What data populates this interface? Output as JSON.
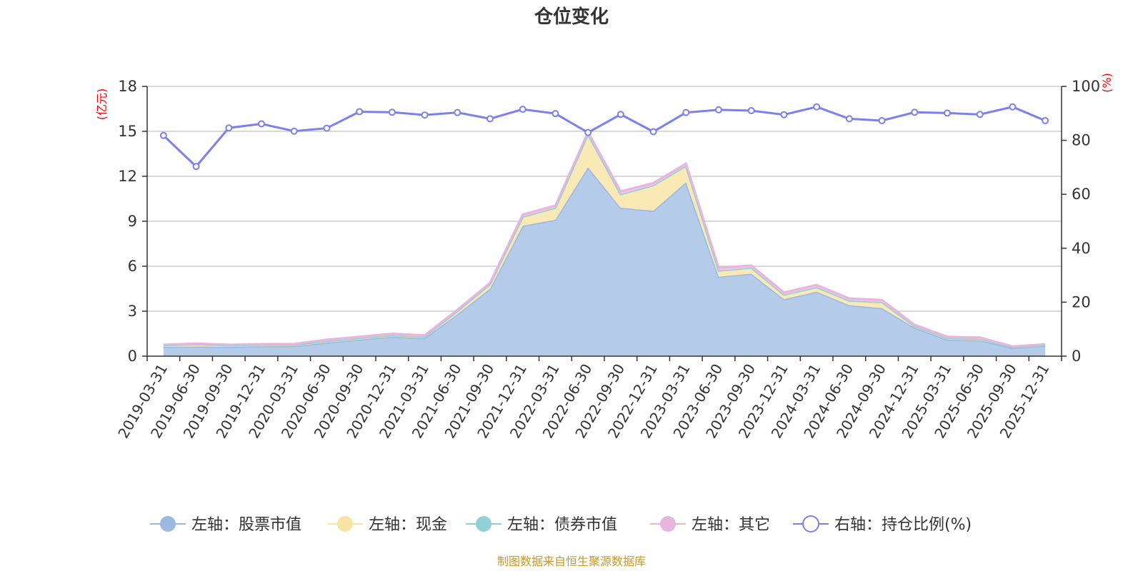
{
  "chart_data": {
    "type": "area",
    "title": "仓位变化",
    "left_axis_unit": "(亿元)",
    "right_axis_unit": "(%)",
    "left_ylim": [
      0,
      18
    ],
    "left_ticks": [
      0,
      3,
      6,
      9,
      12,
      15,
      18
    ],
    "right_ylim": [
      0,
      100
    ],
    "right_ticks": [
      0,
      20,
      40,
      60,
      80,
      100
    ],
    "categories": [
      "2019-03-31",
      "2019-06-30",
      "2019-09-30",
      "2019-12-31",
      "2020-03-31",
      "2020-06-30",
      "2020-09-30",
      "2020-12-31",
      "2021-03-31",
      "2021-06-30",
      "2021-09-30",
      "2021-12-31",
      "2022-03-31",
      "2022-06-30",
      "2022-09-30",
      "2022-12-31",
      "2023-03-31",
      "2023-06-30",
      "2023-09-30",
      "2023-12-31",
      "2024-03-31",
      "2024-06-30",
      "2024-09-30",
      "2024-12-31",
      "2025-03-31",
      "2025-06-30",
      "2025-09-30",
      "2025-12-31"
    ],
    "series": [
      {
        "name": "左轴：股票市值",
        "axis": "left",
        "color": "#9bb8e3",
        "fill": "#b5cbea",
        "values": [
          0.62,
          0.64,
          0.62,
          0.66,
          0.67,
          0.9,
          1.1,
          1.3,
          1.2,
          2.8,
          4.5,
          8.7,
          9.1,
          12.6,
          9.9,
          9.7,
          11.6,
          5.3,
          5.5,
          3.8,
          4.3,
          3.4,
          3.2,
          1.9,
          1.1,
          1.05,
          0.55,
          0.7
        ]
      },
      {
        "name": "左轴：现金",
        "axis": "left",
        "color": "#f7e4a3",
        "fill": "#fbe9b5",
        "values": [
          0.1,
          0.16,
          0.1,
          0.1,
          0.1,
          0.1,
          0.1,
          0.1,
          0.1,
          0.2,
          0.3,
          0.6,
          0.8,
          2.2,
          0.9,
          1.7,
          1.1,
          0.4,
          0.4,
          0.3,
          0.3,
          0.3,
          0.4,
          0.1,
          0.1,
          0.1,
          0.05,
          0.05
        ]
      },
      {
        "name": "左轴：债券市值",
        "axis": "left",
        "color": "#8fd1d5",
        "fill": "#a9dcdf",
        "values": [
          0,
          0,
          0,
          0,
          0,
          0,
          0,
          0,
          0,
          0,
          0,
          0,
          0,
          0,
          0,
          0,
          0,
          0,
          0,
          0,
          0,
          0,
          0,
          0,
          0,
          0,
          0,
          0
        ]
      },
      {
        "name": "左轴：其它",
        "axis": "left",
        "color": "#e8b5dc",
        "fill": "#efc6e5",
        "values": [
          0.05,
          0.05,
          0.05,
          0.05,
          0.05,
          0.1,
          0.1,
          0.1,
          0.1,
          0.1,
          0.1,
          0.15,
          0.15,
          0.15,
          0.2,
          0.15,
          0.15,
          0.2,
          0.15,
          0.15,
          0.15,
          0.15,
          0.15,
          0.1,
          0.1,
          0.1,
          0.05,
          0.05
        ]
      },
      {
        "name": "右轴：持仓比例(%)",
        "axis": "right",
        "color": "#7b7ff0",
        "values": [
          81.8,
          70.3,
          84.6,
          86.1,
          83.4,
          84.5,
          90.6,
          90.4,
          89.4,
          90.3,
          88.0,
          91.5,
          89.9,
          82.9,
          89.6,
          83.2,
          90.3,
          91.3,
          91.0,
          89.5,
          92.4,
          88.0,
          87.3,
          90.4,
          90.1,
          89.6,
          92.4,
          87.3
        ]
      }
    ],
    "legend_position": "bottom",
    "source_note": "制图数据来自恒生聚源数据库"
  }
}
